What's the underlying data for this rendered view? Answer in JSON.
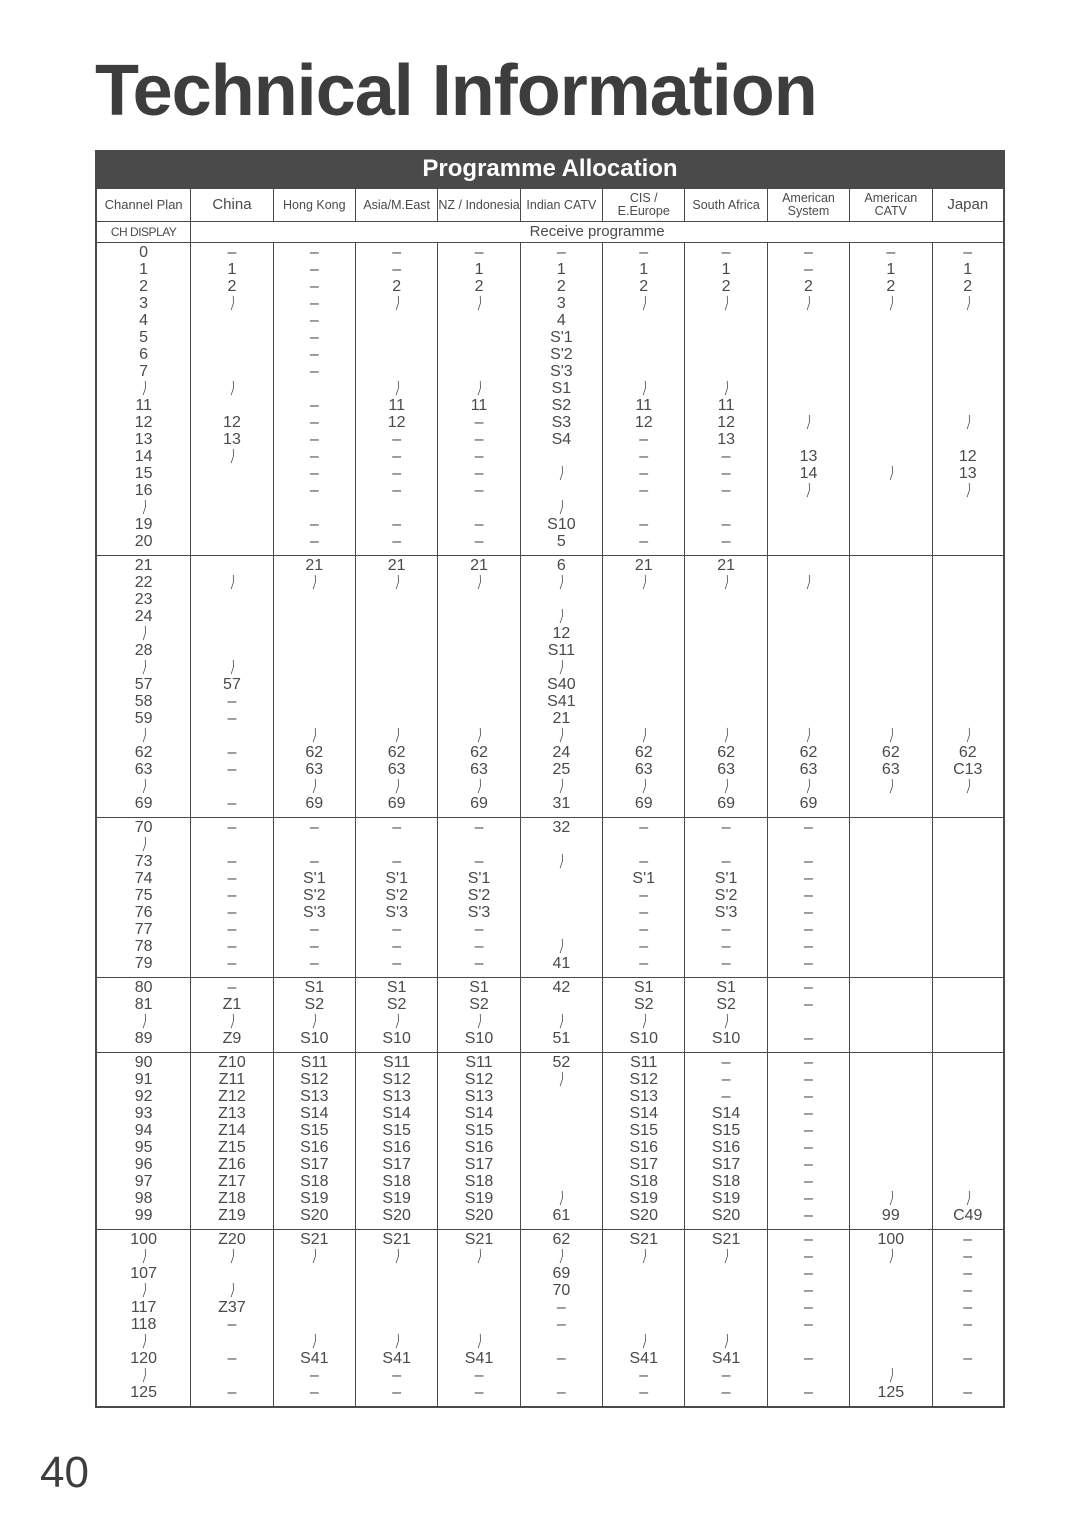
{
  "page_number": "40",
  "title": "Technical Information",
  "banner": "Programme Allocation",
  "header_row": {
    "channel_plan": "Channel Plan",
    "regions": [
      "China",
      "Hong Kong",
      "Asia/M.East",
      "NZ / Indonesia",
      "Indian CATV",
      "CIS / E.Europe",
      "South Africa",
      "American System",
      "American CATV",
      "Japan"
    ]
  },
  "subheader": {
    "ch_display": "CH DISPLAY",
    "receive": "Receive programme"
  },
  "colors": {
    "text": "#4a4a4a",
    "banner_bg": "#4a4a4a",
    "banner_fg": "#ffffff",
    "border": "#4a4a4a",
    "background": "#ffffff"
  },
  "sections": [
    {
      "chdisplay": [
        "0",
        "1",
        "2",
        "3",
        "4",
        "5",
        "6",
        "7",
        "≀",
        "11",
        "12",
        "13",
        "14",
        "15",
        "16",
        "≀",
        "19",
        "20"
      ],
      "cols": [
        [
          "–",
          "1",
          "2",
          "≀",
          "",
          "",
          "",
          "",
          "≀",
          "",
          "12",
          "13",
          "≀",
          "",
          "",
          "",
          "",
          ""
        ],
        [
          "–",
          "–",
          "–",
          "–",
          "–",
          "–",
          "–",
          "–",
          "",
          "–",
          "–",
          "–",
          "–",
          "–",
          "–",
          "",
          "–",
          "–"
        ],
        [
          "–",
          "–",
          "2",
          "≀",
          "",
          "",
          "",
          "",
          "≀",
          "11",
          "12",
          "–",
          "–",
          "–",
          "–",
          "",
          "–",
          "–"
        ],
        [
          "–",
          "1",
          "2",
          "≀",
          "",
          "",
          "",
          "",
          "≀",
          "11",
          "–",
          "–",
          "–",
          "–",
          "–",
          "",
          "–",
          "–"
        ],
        [
          "–",
          "1",
          "2",
          "3",
          "4",
          "S'1",
          "S'2",
          "S'3",
          "S1",
          "S2",
          "S3",
          "S4",
          "",
          "≀",
          "",
          "≀",
          "S10",
          "5"
        ],
        [
          "–",
          "1",
          "2",
          "≀",
          "",
          "",
          "",
          "",
          "≀",
          "11",
          "12",
          "–",
          "–",
          "–",
          "–",
          "",
          "–",
          "–"
        ],
        [
          "–",
          "1",
          "2",
          "≀",
          "",
          "",
          "",
          "",
          "≀",
          "11",
          "12",
          "13",
          "–",
          "–",
          "–",
          "",
          "–",
          "–"
        ],
        [
          "–",
          "–",
          "2",
          "≀",
          "",
          "",
          "",
          "",
          "",
          "",
          "≀",
          "",
          "13",
          "14",
          "≀",
          "",
          "",
          ""
        ],
        [
          "–",
          "1",
          "2",
          "≀",
          "",
          "",
          "",
          "",
          "",
          "",
          "",
          "",
          "",
          "≀",
          "",
          "",
          "",
          ""
        ],
        [
          "–",
          "1",
          "2",
          "≀",
          "",
          "",
          "",
          "",
          "",
          "",
          "≀",
          "",
          "12",
          "13",
          "≀",
          "",
          "",
          ""
        ]
      ]
    },
    {
      "chdisplay": [
        "21",
        "22",
        "23",
        "24",
        "≀",
        "28",
        "≀",
        "57",
        "58",
        "59",
        "≀",
        "62",
        "63",
        "≀",
        "69"
      ],
      "cols": [
        [
          "",
          "≀",
          "",
          "",
          "",
          "",
          "≀",
          "57",
          "–",
          "–",
          "",
          "–",
          "–",
          "",
          "–"
        ],
        [
          "21",
          "≀",
          "",
          "",
          "",
          "",
          "",
          "",
          "",
          "",
          "≀",
          "62",
          "63",
          "≀",
          "69"
        ],
        [
          "21",
          "≀",
          "",
          "",
          "",
          "",
          "",
          "",
          "",
          "",
          "≀",
          "62",
          "63",
          "≀",
          "69"
        ],
        [
          "21",
          "≀",
          "",
          "",
          "",
          "",
          "",
          "",
          "",
          "",
          "≀",
          "62",
          "63",
          "≀",
          "69"
        ],
        [
          "6",
          "≀",
          "",
          "≀",
          "12",
          "S11",
          "≀",
          "S40",
          "S41",
          "21",
          "≀",
          "24",
          "25",
          "≀",
          "31"
        ],
        [
          "21",
          "≀",
          "",
          "",
          "",
          "",
          "",
          "",
          "",
          "",
          "≀",
          "62",
          "63",
          "≀",
          "69"
        ],
        [
          "21",
          "≀",
          "",
          "",
          "",
          "",
          "",
          "",
          "",
          "",
          "≀",
          "62",
          "63",
          "≀",
          "69"
        ],
        [
          "",
          "≀",
          "",
          "",
          "",
          "",
          "",
          "",
          "",
          "",
          "≀",
          "62",
          "63",
          "≀",
          "69"
        ],
        [
          "",
          "",
          "",
          "",
          "",
          "",
          "",
          "",
          "",
          "",
          "≀",
          "62",
          "63",
          "≀",
          ""
        ],
        [
          "",
          "",
          "",
          "",
          "",
          "",
          "",
          "",
          "",
          "",
          "≀",
          "62",
          "C13",
          "≀",
          ""
        ]
      ]
    },
    {
      "chdisplay": [
        "70",
        "≀",
        "73",
        "74",
        "75",
        "76",
        "77",
        "78",
        "79"
      ],
      "cols": [
        [
          "–",
          "",
          "–",
          "–",
          "–",
          "–",
          "–",
          "–",
          "–"
        ],
        [
          "–",
          "",
          "–",
          "S'1",
          "S'2",
          "S'3",
          "–",
          "–",
          "–"
        ],
        [
          "–",
          "",
          "–",
          "S'1",
          "S'2",
          "S'3",
          "–",
          "–",
          "–"
        ],
        [
          "–",
          "",
          "–",
          "S'1",
          "S'2",
          "S'3",
          "–",
          "–",
          "–"
        ],
        [
          "32",
          "",
          "≀",
          "",
          "",
          "",
          "",
          "≀",
          "41"
        ],
        [
          "–",
          "",
          "–",
          "S'1",
          "–",
          "–",
          "–",
          "–",
          "–"
        ],
        [
          "–",
          "",
          "–",
          "S'1",
          "S'2",
          "S'3",
          "–",
          "–",
          "–"
        ],
        [
          "–",
          "",
          "–",
          "–",
          "–",
          "–",
          "–",
          "–",
          "–"
        ],
        [
          "",
          "",
          "",
          "",
          "",
          "",
          "",
          "",
          ""
        ],
        [
          "",
          "",
          "",
          "",
          "",
          "",
          "",
          "",
          ""
        ]
      ]
    },
    {
      "chdisplay": [
        "80",
        "81",
        "≀",
        "89"
      ],
      "cols": [
        [
          "–",
          "Z1",
          "≀",
          "Z9"
        ],
        [
          "S1",
          "S2",
          "≀",
          "S10"
        ],
        [
          "S1",
          "S2",
          "≀",
          "S10"
        ],
        [
          "S1",
          "S2",
          "≀",
          "S10"
        ],
        [
          "42",
          "",
          "≀",
          "51"
        ],
        [
          "S1",
          "S2",
          "≀",
          "S10"
        ],
        [
          "S1",
          "S2",
          "≀",
          "S10"
        ],
        [
          "–",
          "–",
          "",
          "–"
        ],
        [
          "",
          "",
          "",
          ""
        ],
        [
          "",
          "",
          "",
          ""
        ]
      ]
    },
    {
      "chdisplay": [
        "90",
        "91",
        "92",
        "93",
        "94",
        "95",
        "96",
        "97",
        "98",
        "99"
      ],
      "cols": [
        [
          "Z10",
          "Z11",
          "Z12",
          "Z13",
          "Z14",
          "Z15",
          "Z16",
          "Z17",
          "Z18",
          "Z19"
        ],
        [
          "S11",
          "S12",
          "S13",
          "S14",
          "S15",
          "S16",
          "S17",
          "S18",
          "S19",
          "S20"
        ],
        [
          "S11",
          "S12",
          "S13",
          "S14",
          "S15",
          "S16",
          "S17",
          "S18",
          "S19",
          "S20"
        ],
        [
          "S11",
          "S12",
          "S13",
          "S14",
          "S15",
          "S16",
          "S17",
          "S18",
          "S19",
          "S20"
        ],
        [
          "52",
          "≀",
          "",
          "",
          "",
          "",
          "",
          "",
          "≀",
          "61"
        ],
        [
          "S11",
          "S12",
          "S13",
          "S14",
          "S15",
          "S16",
          "S17",
          "S18",
          "S19",
          "S20"
        ],
        [
          "–",
          "–",
          "–",
          "S14",
          "S15",
          "S16",
          "S17",
          "S18",
          "S19",
          "S20"
        ],
        [
          "–",
          "–",
          "–",
          "–",
          "–",
          "–",
          "–",
          "–",
          "–",
          "–"
        ],
        [
          "",
          "",
          "",
          "",
          "",
          "",
          "",
          "",
          "≀",
          "99"
        ],
        [
          "",
          "",
          "",
          "",
          "",
          "",
          "",
          "",
          "≀",
          "C49"
        ]
      ]
    },
    {
      "chdisplay": [
        "100",
        "≀",
        "107",
        "≀",
        "117",
        "118",
        "≀",
        "120",
        "≀",
        "125"
      ],
      "cols": [
        [
          "Z20",
          "≀",
          "",
          "≀",
          "Z37",
          "–",
          "",
          "–",
          "",
          "–"
        ],
        [
          "S21",
          "≀",
          "",
          "",
          "",
          "",
          "≀",
          "S41",
          "–",
          "–"
        ],
        [
          "S21",
          "≀",
          "",
          "",
          "",
          "",
          "≀",
          "S41",
          "–",
          "–"
        ],
        [
          "S21",
          "≀",
          "",
          "",
          "",
          "",
          "≀",
          "S41",
          "–",
          "–"
        ],
        [
          "62",
          "≀",
          "69",
          "70",
          "–",
          "–",
          "",
          "–",
          "",
          "–"
        ],
        [
          "S21",
          "≀",
          "",
          "",
          "",
          "",
          "≀",
          "S41",
          "–",
          "–"
        ],
        [
          "S21",
          "≀",
          "",
          "",
          "",
          "",
          "≀",
          "S41",
          "–",
          "–"
        ],
        [
          "–",
          "–",
          "–",
          "–",
          "–",
          "–",
          "",
          "–",
          "",
          "–"
        ],
        [
          "100",
          "≀",
          "",
          "",
          "",
          "",
          "",
          "",
          "≀",
          "125"
        ],
        [
          "–",
          "–",
          "–",
          "–",
          "–",
          "–",
          "",
          "–",
          "",
          "–"
        ]
      ]
    }
  ]
}
